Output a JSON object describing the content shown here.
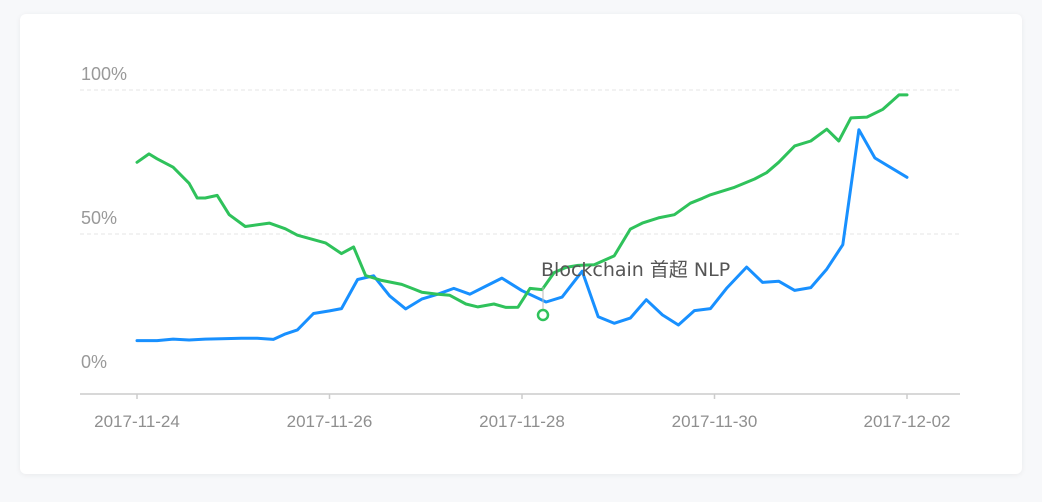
{
  "chart_data": {
    "type": "line",
    "x_tick_labels": [
      "2017-11-24",
      "2017-11-26",
      "2017-11-28",
      "2017-11-30",
      "2017-12-02"
    ],
    "y_tick_labels": [
      "0%",
      "50%",
      "100%"
    ],
    "ylim": [
      0,
      100
    ],
    "grid": true,
    "annotation": "Blockchain 首超 NLP",
    "colors": {
      "blue": "#1890ff",
      "green": "#2fc25b",
      "grid": "#e6e6e6",
      "axis": "#cccccc"
    },
    "series": [
      {
        "color": "#1890ff",
        "values": [
          {
            "x": "2017-11-24",
            "y": 13
          },
          {
            "x": "2017-11-24T05:00",
            "y": 13
          },
          {
            "x": "2017-11-24T09:00",
            "y": 13.5
          },
          {
            "x": "2017-11-24T13:00",
            "y": 13.2
          },
          {
            "x": "2017-11-24T17:00",
            "y": 13.5
          },
          {
            "x": "2017-11-24T21:00",
            "y": 13.6
          },
          {
            "x": "2017-11-25T02:00",
            "y": 13.8
          },
          {
            "x": "2017-11-25T06:00",
            "y": 13.8
          },
          {
            "x": "2017-11-25T10:00",
            "y": 13.4
          },
          {
            "x": "2017-11-25T13:00",
            "y": 15.3
          },
          {
            "x": "2017-11-25T16:00",
            "y": 16.7
          },
          {
            "x": "2017-11-25T20:00",
            "y": 22.4
          },
          {
            "x": "2017-11-26",
            "y": 23.3
          },
          {
            "x": "2017-11-26T03:00",
            "y": 24.1
          },
          {
            "x": "2017-11-26T07:00",
            "y": 34.2
          },
          {
            "x": "2017-11-26T11:00",
            "y": 35.5
          },
          {
            "x": "2017-11-26T15:00",
            "y": 28.5
          },
          {
            "x": "2017-11-26T19:00",
            "y": 24
          },
          {
            "x": "2017-11-26T23:00",
            "y": 27.4
          },
          {
            "x": "2017-11-27T03:00",
            "y": 29.1
          },
          {
            "x": "2017-11-27T07:00",
            "y": 31.1
          },
          {
            "x": "2017-11-27T11:00",
            "y": 29.1
          },
          {
            "x": "2017-11-27T15:00",
            "y": 31.9
          },
          {
            "x": "2017-11-27T19:00",
            "y": 34.7
          },
          {
            "x": "2017-11-28",
            "y": 30.3
          },
          {
            "x": "2017-11-28T06:00",
            "y": 26.4
          },
          {
            "x": "2017-11-28T10:00",
            "y": 28.1
          },
          {
            "x": "2017-11-28T15:00",
            "y": 37.1
          },
          {
            "x": "2017-11-28T19:00",
            "y": 21.3
          },
          {
            "x": "2017-11-28T23:00",
            "y": 19
          },
          {
            "x": "2017-11-29T03:00",
            "y": 20.8
          },
          {
            "x": "2017-11-29T07:00",
            "y": 27.2
          },
          {
            "x": "2017-11-29T11:00",
            "y": 21.9
          },
          {
            "x": "2017-11-29T15:00",
            "y": 18.4
          },
          {
            "x": "2017-11-29T19:00",
            "y": 23.4
          },
          {
            "x": "2017-11-29T23:00",
            "y": 24.1
          },
          {
            "x": "2017-11-30T03:00",
            "y": 31.1
          },
          {
            "x": "2017-11-30T08:00",
            "y": 38.5
          },
          {
            "x": "2017-11-30T12:00",
            "y": 33.2
          },
          {
            "x": "2017-11-30T16:00",
            "y": 33.6
          },
          {
            "x": "2017-11-30T20:00",
            "y": 30.4
          },
          {
            "x": "2017-12-01",
            "y": 31.4
          },
          {
            "x": "2017-12-01T04:00",
            "y": 37.8
          },
          {
            "x": "2017-12-01T08:00",
            "y": 46.3
          },
          {
            "x": "2017-12-01T12:00",
            "y": 86.2
          },
          {
            "x": "2017-12-01T16:00",
            "y": 76.4
          },
          {
            "x": "2017-12-02",
            "y": 69.7
          }
        ]
      },
      {
        "color": "#2fc25b",
        "values": [
          {
            "x": "2017-11-24",
            "y": 74.9
          },
          {
            "x": "2017-11-24T03:00",
            "y": 77.8
          },
          {
            "x": "2017-11-24T05:00",
            "y": 76.1
          },
          {
            "x": "2017-11-24T09:00",
            "y": 73.2
          },
          {
            "x": "2017-11-24T13:00",
            "y": 67.6
          },
          {
            "x": "2017-11-24T15:00",
            "y": 62.5
          },
          {
            "x": "2017-11-24T17:00",
            "y": 62.5
          },
          {
            "x": "2017-11-24T20:00",
            "y": 63.4
          },
          {
            "x": "2017-11-24T23:00",
            "y": 56.7
          },
          {
            "x": "2017-11-25T03:00",
            "y": 52.6
          },
          {
            "x": "2017-11-25T09:00",
            "y": 53.8
          },
          {
            "x": "2017-11-25T13:00",
            "y": 51.8
          },
          {
            "x": "2017-11-25T16:00",
            "y": 49.6
          },
          {
            "x": "2017-11-25T23:00",
            "y": 46.9
          },
          {
            "x": "2017-11-26T03:00",
            "y": 43.2
          },
          {
            "x": "2017-11-26T06:00",
            "y": 45.5
          },
          {
            "x": "2017-11-26T09:00",
            "y": 35.6
          },
          {
            "x": "2017-11-26T13:00",
            "y": 33.9
          },
          {
            "x": "2017-11-26T18:00",
            "y": 32.5
          },
          {
            "x": "2017-11-26T21:00",
            "y": 30.9
          },
          {
            "x": "2017-11-26T23:00",
            "y": 29.8
          },
          {
            "x": "2017-11-27T03:00",
            "y": 29.1
          },
          {
            "x": "2017-11-27T06:00",
            "y": 28.7
          },
          {
            "x": "2017-11-27T10:00",
            "y": 25.7
          },
          {
            "x": "2017-11-27T13:00",
            "y": 24.7
          },
          {
            "x": "2017-11-27T17:00",
            "y": 25.7
          },
          {
            "x": "2017-11-27T20:00",
            "y": 24.5
          },
          {
            "x": "2017-11-27T23:00",
            "y": 24.6
          },
          {
            "x": "2017-11-28T02:00",
            "y": 31.1
          },
          {
            "x": "2017-11-28T05:00",
            "y": 30.7
          },
          {
            "x": "2017-11-28T08:00",
            "y": 36.6
          },
          {
            "x": "2017-11-28T11:00",
            "y": 38.4
          },
          {
            "x": "2017-11-28T14:00",
            "y": 39.1
          },
          {
            "x": "2017-11-28T18:00",
            "y": 39.3
          },
          {
            "x": "2017-11-28T23:00",
            "y": 42.4
          },
          {
            "x": "2017-11-29T03:00",
            "y": 51.7
          },
          {
            "x": "2017-11-29T06:00",
            "y": 53.8
          },
          {
            "x": "2017-11-29T10:00",
            "y": 55.6
          },
          {
            "x": "2017-11-29T14:00",
            "y": 56.7
          },
          {
            "x": "2017-11-29T18:00",
            "y": 60.7
          },
          {
            "x": "2017-11-29T21:00",
            "y": 62.4
          },
          {
            "x": "2017-11-29T23:00",
            "y": 63.6
          },
          {
            "x": "2017-11-30T05:00",
            "y": 66.2
          },
          {
            "x": "2017-11-30T10:00",
            "y": 69.1
          },
          {
            "x": "2017-11-30T13:00",
            "y": 71.3
          },
          {
            "x": "2017-11-30T16:00",
            "y": 74.9
          },
          {
            "x": "2017-11-30T20:00",
            "y": 80.6
          },
          {
            "x": "2017-12-01",
            "y": 82.3
          },
          {
            "x": "2017-12-01T04:00",
            "y": 86.4
          },
          {
            "x": "2017-12-01T07:00",
            "y": 82.3
          },
          {
            "x": "2017-12-01T10:00",
            "y": 90.3
          },
          {
            "x": "2017-12-01T14:00",
            "y": 90.6
          },
          {
            "x": "2017-12-01T18:00",
            "y": 93.3
          },
          {
            "x": "2017-12-01T22:00",
            "y": 98.3
          },
          {
            "x": "2017-12-02",
            "y": 98.3
          }
        ]
      }
    ]
  }
}
